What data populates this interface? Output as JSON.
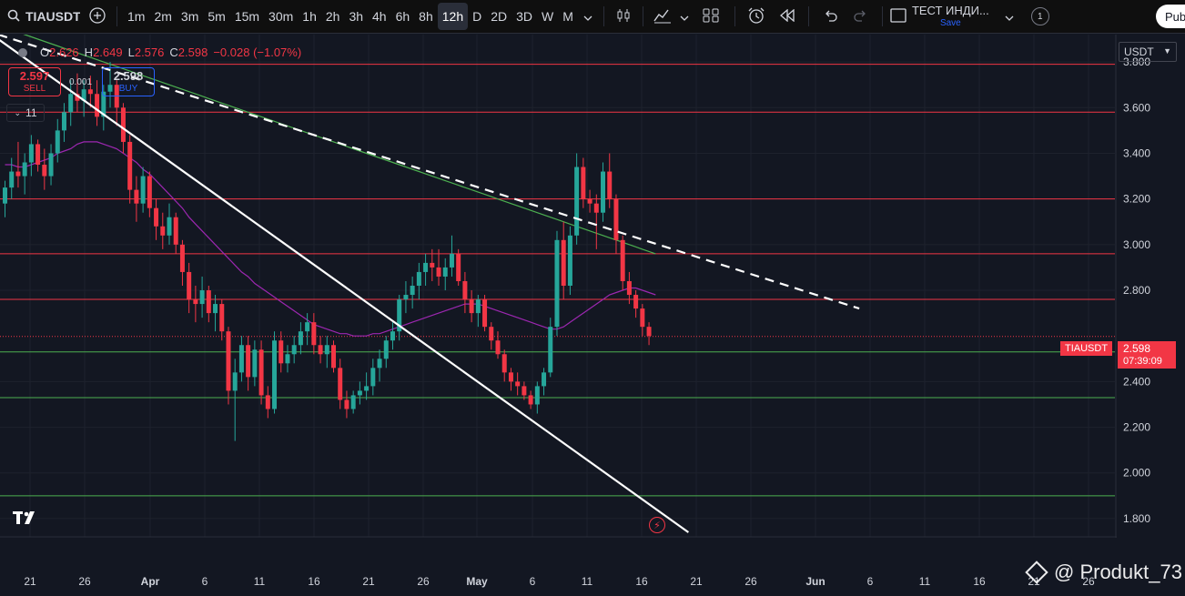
{
  "toolbar": {
    "symbol": "TIAUSDT",
    "intervals": [
      "1m",
      "2m",
      "3m",
      "5m",
      "15m",
      "30m",
      "1h",
      "2h",
      "3h",
      "4h",
      "6h",
      "8h",
      "12h",
      "D",
      "2D",
      "3D",
      "W",
      "M"
    ],
    "active_interval": "12h",
    "indicator_name": "ТЕСТ ИНДИ...",
    "indicator_save": "Save",
    "badge_count": "1",
    "publish_label": "Publish"
  },
  "legend": {
    "open_label": "O",
    "open": "2.626",
    "high_label": "H",
    "high": "2.649",
    "low_label": "L",
    "low": "2.576",
    "close_label": "C",
    "close": "2.598",
    "change": "−0.028 (−1.07%)"
  },
  "trade": {
    "sell_price": "2.597",
    "sell_label": "SELL",
    "buy_price": "2.598",
    "buy_label": "BUY",
    "spread": "0.001"
  },
  "indicator_toggle": "11",
  "currency": "USDT",
  "last_price": {
    "symbol": "TIAUSDT",
    "price": "2.598",
    "countdown": "07:39:09"
  },
  "watermark": "@ Produkt_73",
  "colors": {
    "up": "#26a69a",
    "down": "#f23645",
    "ma_slow": "#4caf50",
    "ma_fast": "#9c27b0",
    "level_red": "#f23645",
    "level_green": "#4caf50",
    "background": "#131722"
  },
  "chart_data": {
    "type": "candlestick",
    "symbol": "TIAUSDT",
    "interval": "12h",
    "y_ticks": [
      "3.800",
      "3.600",
      "3.400",
      "3.200",
      "3.000",
      "2.800",
      "2.400",
      "2.200",
      "2.000",
      "1.800"
    ],
    "x_ticks": [
      "21",
      "26",
      "Apr",
      "6",
      "11",
      "16",
      "21",
      "26",
      "May",
      "6",
      "11",
      "16",
      "21",
      "26",
      "Jun",
      "6",
      "11",
      "16",
      "21",
      "26"
    ],
    "ylim": [
      1.72,
      3.92
    ],
    "horizontal_levels": [
      {
        "value": 3.79,
        "color": "red"
      },
      {
        "value": 3.58,
        "color": "red"
      },
      {
        "value": 3.2,
        "color": "red"
      },
      {
        "value": 2.96,
        "color": "red"
      },
      {
        "value": 2.76,
        "color": "red"
      },
      {
        "value": 2.53,
        "color": "green"
      },
      {
        "value": 2.33,
        "color": "green"
      },
      {
        "value": 1.9,
        "color": "green"
      }
    ],
    "candles": [
      [
        3.18,
        3.28,
        3.12,
        3.25
      ],
      [
        3.25,
        3.38,
        3.2,
        3.32
      ],
      [
        3.32,
        3.45,
        3.25,
        3.3
      ],
      [
        3.3,
        3.4,
        3.22,
        3.36
      ],
      [
        3.36,
        3.48,
        3.3,
        3.44
      ],
      [
        3.44,
        3.46,
        3.32,
        3.35
      ],
      [
        3.35,
        3.42,
        3.24,
        3.3
      ],
      [
        3.3,
        3.44,
        3.26,
        3.4
      ],
      [
        3.4,
        3.55,
        3.36,
        3.5
      ],
      [
        3.5,
        3.62,
        3.45,
        3.58
      ],
      [
        3.58,
        3.72,
        3.52,
        3.66
      ],
      [
        3.66,
        3.75,
        3.58,
        3.63
      ],
      [
        3.63,
        3.72,
        3.56,
        3.68
      ],
      [
        3.68,
        3.74,
        3.6,
        3.66
      ],
      [
        3.66,
        3.72,
        3.52,
        3.56
      ],
      [
        3.56,
        3.7,
        3.5,
        3.67
      ],
      [
        3.67,
        3.8,
        3.6,
        3.7
      ],
      [
        3.7,
        3.72,
        3.52,
        3.6
      ],
      [
        3.6,
        3.62,
        3.4,
        3.45
      ],
      [
        3.45,
        3.48,
        3.18,
        3.24
      ],
      [
        3.24,
        3.3,
        3.1,
        3.18
      ],
      [
        3.18,
        3.34,
        3.14,
        3.3
      ],
      [
        3.3,
        3.32,
        3.12,
        3.16
      ],
      [
        3.16,
        3.2,
        3.02,
        3.08
      ],
      [
        3.08,
        3.14,
        2.98,
        3.04
      ],
      [
        3.04,
        3.18,
        3.0,
        3.12
      ],
      [
        3.12,
        3.14,
        2.96,
        3.0
      ],
      [
        3.0,
        3.02,
        2.82,
        2.88
      ],
      [
        2.88,
        2.92,
        2.7,
        2.76
      ],
      [
        2.76,
        2.82,
        2.66,
        2.74
      ],
      [
        2.74,
        2.86,
        2.68,
        2.8
      ],
      [
        2.8,
        2.82,
        2.66,
        2.7
      ],
      [
        2.7,
        2.78,
        2.62,
        2.74
      ],
      [
        2.74,
        2.76,
        2.58,
        2.62
      ],
      [
        2.62,
        2.64,
        2.3,
        2.36
      ],
      [
        2.36,
        2.5,
        2.14,
        2.44
      ],
      [
        2.44,
        2.6,
        2.4,
        2.56
      ],
      [
        2.56,
        2.6,
        2.36,
        2.42
      ],
      [
        2.42,
        2.58,
        2.38,
        2.54
      ],
      [
        2.54,
        2.58,
        2.3,
        2.34
      ],
      [
        2.34,
        2.38,
        2.24,
        2.28
      ],
      [
        2.28,
        2.62,
        2.26,
        2.58
      ],
      [
        2.58,
        2.62,
        2.44,
        2.48
      ],
      [
        2.48,
        2.56,
        2.44,
        2.52
      ],
      [
        2.52,
        2.6,
        2.48,
        2.56
      ],
      [
        2.56,
        2.66,
        2.52,
        2.62
      ],
      [
        2.62,
        2.7,
        2.56,
        2.66
      ],
      [
        2.66,
        2.7,
        2.52,
        2.56
      ],
      [
        2.56,
        2.6,
        2.48,
        2.52
      ],
      [
        2.52,
        2.6,
        2.46,
        2.56
      ],
      [
        2.56,
        2.58,
        2.44,
        2.46
      ],
      [
        2.46,
        2.5,
        2.28,
        2.32
      ],
      [
        2.32,
        2.36,
        2.24,
        2.28
      ],
      [
        2.28,
        2.36,
        2.26,
        2.34
      ],
      [
        2.34,
        2.4,
        2.3,
        2.36
      ],
      [
        2.36,
        2.44,
        2.32,
        2.38
      ],
      [
        2.38,
        2.5,
        2.34,
        2.46
      ],
      [
        2.46,
        2.54,
        2.4,
        2.5
      ],
      [
        2.5,
        2.6,
        2.46,
        2.58
      ],
      [
        2.58,
        2.66,
        2.54,
        2.62
      ],
      [
        2.62,
        2.78,
        2.58,
        2.76
      ],
      [
        2.76,
        2.84,
        2.7,
        2.78
      ],
      [
        2.78,
        2.86,
        2.72,
        2.82
      ],
      [
        2.82,
        2.92,
        2.76,
        2.88
      ],
      [
        2.88,
        2.96,
        2.82,
        2.92
      ],
      [
        2.92,
        2.98,
        2.84,
        2.9
      ],
      [
        2.9,
        2.98,
        2.82,
        2.86
      ],
      [
        2.86,
        2.94,
        2.8,
        2.9
      ],
      [
        2.9,
        3.04,
        2.86,
        2.96
      ],
      [
        2.96,
        2.98,
        2.82,
        2.84
      ],
      [
        2.84,
        2.88,
        2.7,
        2.76
      ],
      [
        2.76,
        2.8,
        2.66,
        2.7
      ],
      [
        2.7,
        2.78,
        2.64,
        2.76
      ],
      [
        2.76,
        2.78,
        2.62,
        2.64
      ],
      [
        2.64,
        2.66,
        2.54,
        2.58
      ],
      [
        2.58,
        2.62,
        2.5,
        2.52
      ],
      [
        2.52,
        2.54,
        2.4,
        2.44
      ],
      [
        2.44,
        2.46,
        2.36,
        2.4
      ],
      [
        2.4,
        2.44,
        2.34,
        2.38
      ],
      [
        2.38,
        2.4,
        2.32,
        2.34
      ],
      [
        2.34,
        2.36,
        2.28,
        2.3
      ],
      [
        2.3,
        2.4,
        2.26,
        2.38
      ],
      [
        2.38,
        2.46,
        2.34,
        2.44
      ],
      [
        2.44,
        2.68,
        2.42,
        2.64
      ],
      [
        2.64,
        3.06,
        2.6,
        3.02
      ],
      [
        3.02,
        3.1,
        2.76,
        2.82
      ],
      [
        2.82,
        3.08,
        2.78,
        3.04
      ],
      [
        3.04,
        3.4,
        3.0,
        3.34
      ],
      [
        3.34,
        3.38,
        3.16,
        3.2
      ],
      [
        3.2,
        3.24,
        3.14,
        3.18
      ],
      [
        3.18,
        3.22,
        2.98,
        3.14
      ],
      [
        3.14,
        3.36,
        3.1,
        3.32
      ],
      [
        3.32,
        3.4,
        3.16,
        3.2
      ],
      [
        3.2,
        3.22,
        2.96,
        3.02
      ],
      [
        3.02,
        3.04,
        2.8,
        2.84
      ],
      [
        2.84,
        2.88,
        2.74,
        2.78
      ],
      [
        2.78,
        2.8,
        2.68,
        2.72
      ],
      [
        2.72,
        2.74,
        2.6,
        2.64
      ],
      [
        2.64,
        2.66,
        2.56,
        2.6
      ]
    ],
    "ma_slow": {
      "start_index": 0,
      "values": [
        3.95,
        3.94,
        3.93,
        3.92,
        3.91,
        3.9,
        3.89,
        3.88,
        3.87,
        3.86,
        3.85,
        3.84,
        3.83,
        3.82,
        3.81,
        3.8,
        3.79,
        3.78,
        3.77,
        3.76,
        3.75,
        3.74,
        3.73,
        3.72,
        3.71,
        3.7,
        3.69,
        3.68,
        3.67,
        3.66,
        3.65,
        3.64,
        3.63,
        3.62,
        3.61,
        3.6,
        3.59,
        3.58,
        3.57,
        3.56,
        3.55,
        3.54,
        3.53,
        3.52,
        3.51,
        3.5,
        3.49,
        3.48,
        3.47,
        3.46,
        3.45,
        3.44,
        3.43,
        3.42,
        3.41,
        3.4,
        3.39,
        3.38,
        3.37,
        3.36,
        3.35,
        3.34,
        3.33,
        3.32,
        3.31,
        3.3,
        3.29,
        3.28,
        3.27,
        3.26,
        3.25,
        3.24,
        3.23,
        3.22,
        3.21,
        3.2,
        3.19,
        3.18,
        3.17,
        3.16,
        3.15,
        3.14,
        3.13,
        3.12,
        3.11,
        3.1,
        3.09,
        3.08,
        3.07,
        3.06,
        3.05,
        3.04,
        3.03,
        3.02,
        3.01,
        3.0,
        2.99,
        2.98,
        2.97,
        2.96
      ]
    },
    "ma_fast": {
      "start_index": 0,
      "values": [
        3.35,
        3.35,
        3.34,
        3.34,
        3.35,
        3.36,
        3.37,
        3.38,
        3.4,
        3.41,
        3.42,
        3.44,
        3.45,
        3.45,
        3.45,
        3.44,
        3.43,
        3.42,
        3.4,
        3.38,
        3.36,
        3.33,
        3.31,
        3.28,
        3.25,
        3.22,
        3.19,
        3.16,
        3.12,
        3.09,
        3.06,
        3.03,
        3.0,
        2.97,
        2.94,
        2.91,
        2.88,
        2.86,
        2.83,
        2.81,
        2.79,
        2.77,
        2.75,
        2.73,
        2.71,
        2.69,
        2.67,
        2.65,
        2.64,
        2.63,
        2.62,
        2.61,
        2.61,
        2.6,
        2.6,
        2.6,
        2.61,
        2.61,
        2.62,
        2.63,
        2.64,
        2.65,
        2.66,
        2.67,
        2.68,
        2.69,
        2.7,
        2.71,
        2.72,
        2.73,
        2.74,
        2.74,
        2.74,
        2.73,
        2.72,
        2.71,
        2.7,
        2.69,
        2.68,
        2.67,
        2.66,
        2.65,
        2.64,
        2.63,
        2.63,
        2.64,
        2.66,
        2.68,
        2.7,
        2.72,
        2.74,
        2.76,
        2.78,
        2.79,
        2.8,
        2.81,
        2.81,
        2.8,
        2.79,
        2.78
      ]
    },
    "trendlines": [
      {
        "style": "solid",
        "from": {
          "index": -2,
          "value": 3.92
        },
        "to": {
          "index": 104,
          "value": 1.74
        }
      },
      {
        "style": "dashed",
        "from": {
          "index": -1,
          "value": 3.92
        },
        "to": {
          "index": 130,
          "value": 2.72
        }
      }
    ]
  }
}
